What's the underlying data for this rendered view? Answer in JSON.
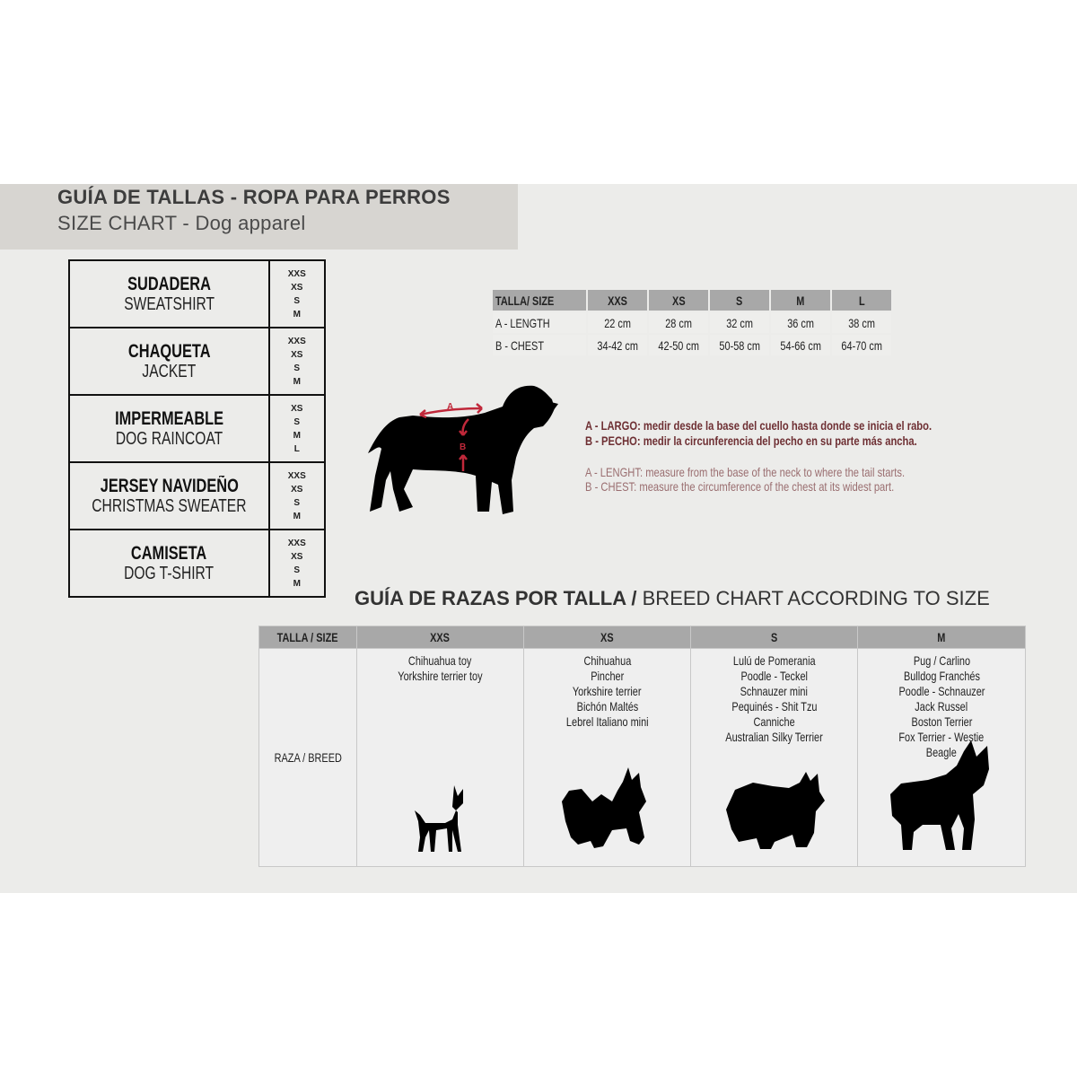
{
  "header": {
    "title_es": "GUÍA DE TALLAS - ROPA PARA PERROS",
    "title_en": "SIZE CHART - Dog apparel"
  },
  "garments": [
    {
      "es": "SUDADERA",
      "en": "SWEATSHIRT",
      "sizes": [
        "XXS",
        "XS",
        "S",
        "M"
      ]
    },
    {
      "es": "CHAQUETA",
      "en": "JACKET",
      "sizes": [
        "XXS",
        "XS",
        "S",
        "M"
      ]
    },
    {
      "es": "IMPERMEABLE",
      "en": "DOG RAINCOAT",
      "sizes": [
        "XS",
        "S",
        "M",
        "L"
      ]
    },
    {
      "es": "JERSEY NAVIDEÑO",
      "en": "CHRISTMAS SWEATER",
      "sizes": [
        "XXS",
        "XS",
        "S",
        "M"
      ]
    },
    {
      "es": "CAMISETA",
      "en": "DOG T-SHIRT",
      "sizes": [
        "XXS",
        "XS",
        "S",
        "M"
      ]
    }
  ],
  "measure_table": {
    "header": [
      "TALLA/ SIZE",
      "XXS",
      "XS",
      "S",
      "M",
      "L"
    ],
    "rows": [
      [
        "A - LENGTH",
        "22 cm",
        "28 cm",
        "32 cm",
        "36 cm",
        "38 cm"
      ],
      [
        "B - CHEST",
        "34-42 cm",
        "42-50 cm",
        "50-58 cm",
        "54-66 cm",
        "64-70 cm"
      ]
    ]
  },
  "diagram": {
    "label_a": "A",
    "label_b": "B",
    "arrow_color": "#c0283a"
  },
  "instructions": {
    "es_a": "A - LARGO: medir desde la base del cuello hasta donde se inicia el rabo.",
    "es_b": "B - PECHO: medir la circunferencia del pecho en su parte más ancha.",
    "en_a": "A - LENGHT: measure from the base of the neck to where the tail starts.",
    "en_b": "B - CHEST: measure the circumference of the chest at its widest part."
  },
  "breed_chart": {
    "title_es": "GUÍA DE RAZAS POR TALLA /",
    "title_en": " BREED CHART ACCORDING TO SIZE",
    "header": [
      "TALLA /  SIZE",
      "XXS",
      "XS",
      "S",
      "M"
    ],
    "row_label": "RAZA / BREED",
    "breeds": [
      [
        "Chihuahua toy",
        "Yorkshire terrier toy"
      ],
      [
        "Chihuahua",
        "Pincher",
        "Yorkshire terrier",
        "Bichón Maltés",
        "Lebrel Italiano mini"
      ],
      [
        "Lulú de Pomerania",
        "Poodle  -  Teckel",
        "Schnauzer mini",
        "Pequinés  -  Shit Tzu",
        "Canniche",
        "Australian Silky Terrier"
      ],
      [
        "Pug / Carlino",
        "Bulldog Franchés",
        "Poodle  -  Schnauzer",
        "Jack Russel",
        "Boston Terrier",
        "Fox Terrier  -  Westie",
        "Beagle"
      ]
    ]
  }
}
